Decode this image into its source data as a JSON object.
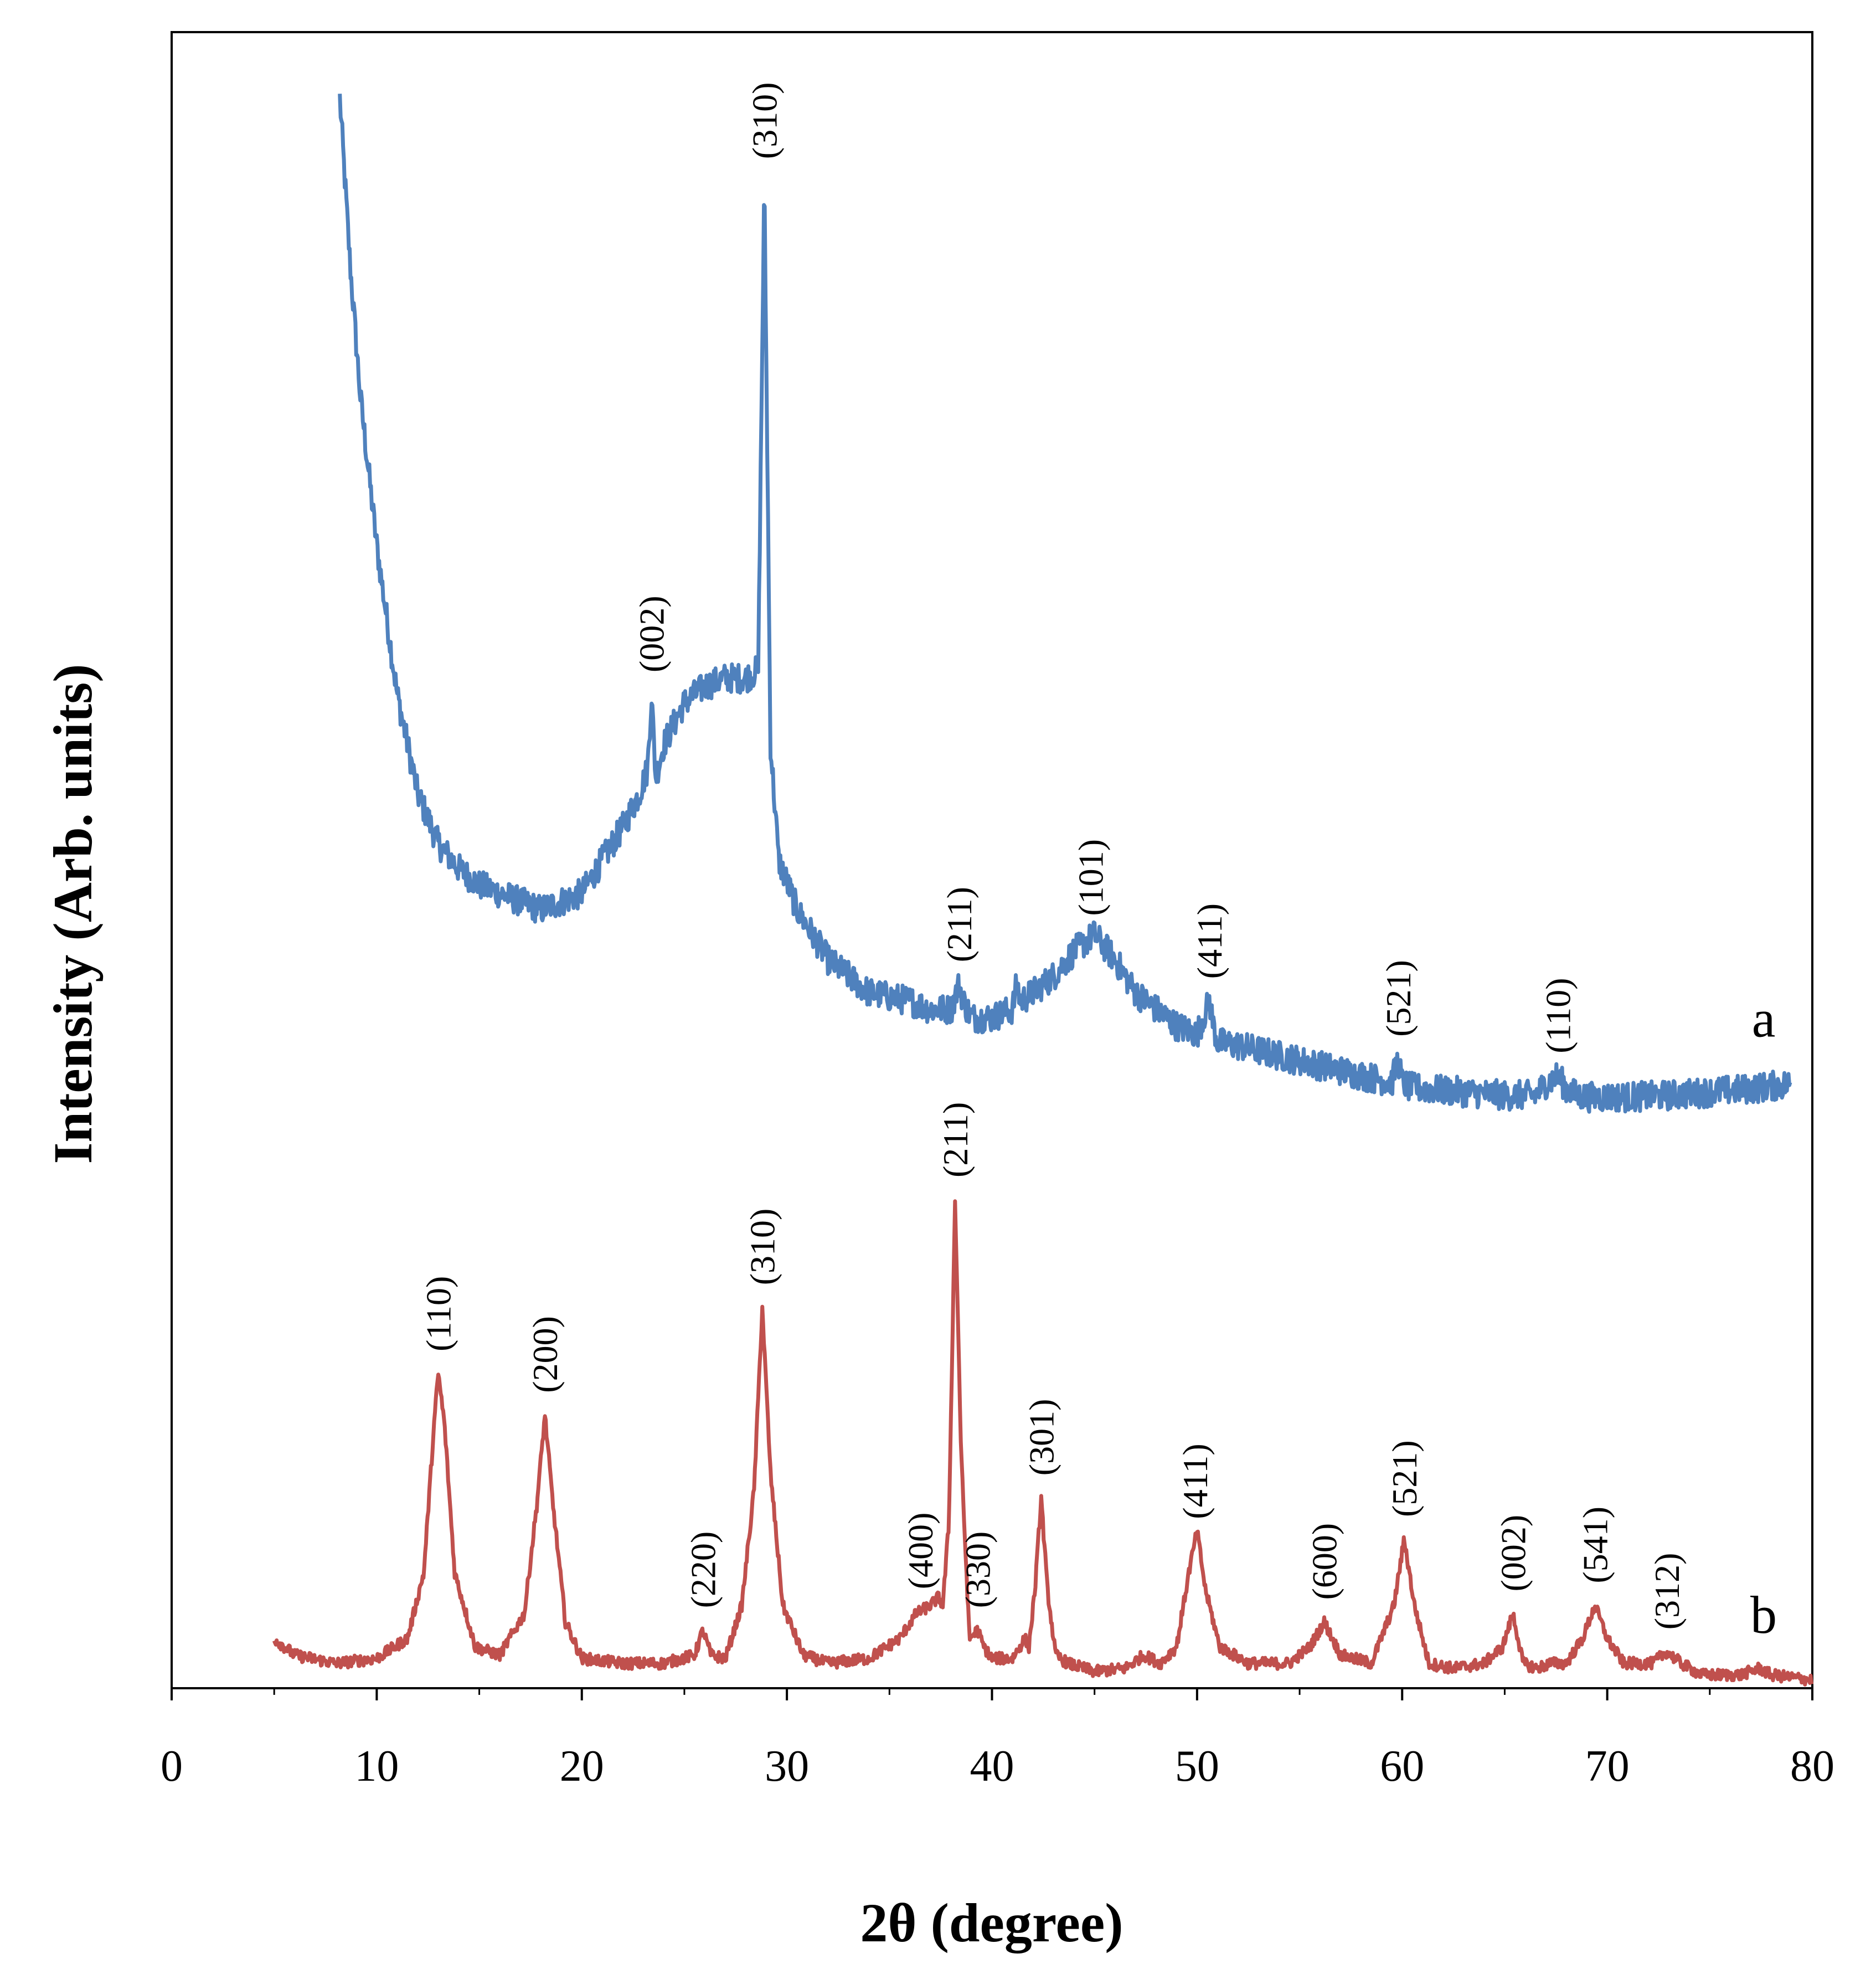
{
  "chart_data": {
    "type": "line",
    "title": "",
    "xlabel": "2θ (degree)",
    "ylabel": "Intensity (Arb. units)",
    "xlim": [
      0,
      80
    ],
    "ylim": [
      0,
      100
    ],
    "xticks": [
      0,
      10,
      20,
      30,
      40,
      50,
      60,
      70,
      80
    ],
    "xtick_labels": [
      "0",
      "10",
      "20",
      "30",
      "40",
      "50",
      "60",
      "70",
      "80"
    ],
    "grid": false,
    "legend": "none",
    "colors": {
      "a": "#4f81bd",
      "b": "#c0504d"
    },
    "series": [
      {
        "name": "a",
        "label": "a",
        "color": "#4f81bd",
        "x": [
          8.2,
          8.7,
          9.2,
          10,
          11,
          12,
          13,
          14,
          15,
          16,
          17,
          18,
          19,
          20,
          21,
          22,
          22.8,
          23.2,
          23.4,
          23.6,
          24,
          25,
          26,
          27,
          28,
          28.6,
          28.9,
          29.2,
          29.6,
          30.5,
          32,
          34,
          36,
          37,
          38,
          38.4,
          38.6,
          39,
          40,
          41,
          41.2,
          41.4,
          42,
          43,
          44,
          45,
          46,
          47,
          48,
          49,
          50,
          50.6,
          50.8,
          51,
          52,
          54,
          56,
          58,
          59.5,
          59.8,
          60,
          60.3,
          61,
          63,
          65,
          66.5,
          67,
          67.6,
          68,
          68.5,
          69,
          71,
          73,
          75,
          77,
          79
        ],
        "y": [
          96,
          86,
          78,
          69,
          60,
          54,
          51,
          49.5,
          48.5,
          48,
          47.5,
          47,
          47.5,
          48,
          50,
          52,
          54,
          55.5,
          60,
          55,
          57,
          59.5,
          60.5,
          61,
          61,
          61.5,
          91,
          57,
          50,
          47,
          44,
          42,
          41.5,
          41,
          41,
          42.5,
          41.5,
          40.5,
          40.5,
          41,
          42.5,
          41.5,
          42,
          43,
          44.5,
          45.5,
          44,
          42,
          41,
          40,
          39.5,
          41.5,
          40,
          39,
          38.8,
          38.2,
          37.6,
          37,
          36.6,
          38,
          36.6,
          36.3,
          36.2,
          36,
          35.8,
          35.8,
          36.5,
          37,
          36.2,
          35.8,
          35.7,
          35.7,
          35.8,
          36,
          36.2,
          36.5
        ]
      },
      {
        "name": "b",
        "label": "b",
        "color": "#c0504d",
        "x": [
          5,
          6,
          8,
          10,
          11.5,
          12.3,
          12.8,
          13,
          13.3,
          13.8,
          14.8,
          16,
          17.2,
          17.8,
          18.2,
          18.6,
          19.2,
          20,
          22,
          24,
          25.5,
          25.9,
          26.3,
          27,
          27.8,
          28.4,
          28.8,
          29.2,
          29.8,
          30.8,
          32,
          34,
          35.5,
          36.3,
          37,
          37.4,
          37.6,
          37.9,
          38.2,
          38.5,
          38.9,
          39.3,
          39.6,
          40,
          41,
          41.6,
          41.8,
          42.1,
          42.4,
          42.7,
          43.1,
          43.7,
          45,
          46.5,
          47.4,
          48.2,
          49,
          49.6,
          50,
          50.4,
          51.1,
          52.5,
          54.5,
          55.5,
          56.2,
          57,
          58.5,
          59.6,
          60.1,
          60.6,
          61.3,
          62.5,
          64,
          64.9,
          65.4,
          65.9,
          66.6,
          67.2,
          68,
          68.8,
          69.4,
          70,
          70.8,
          72.2,
          72.9,
          73.6,
          74.6,
          76.5,
          77.4,
          78,
          80
        ],
        "y": [
          3,
          2,
          1.5,
          1.8,
          3,
          7,
          16,
          19,
          16,
          7,
          2.5,
          2,
          4.5,
          11,
          16.5,
          11,
          4,
          1.8,
          1.5,
          1.5,
          2,
          3.5,
          2,
          1.8,
          5,
          12,
          23,
          13,
          5,
          2,
          1.5,
          1.8,
          3,
          4.5,
          5,
          5.5,
          5,
          10,
          29.5,
          14,
          3,
          3.5,
          2.5,
          1.8,
          1.8,
          3,
          2.5,
          6,
          11.5,
          6,
          2,
          1.5,
          1,
          1.2,
          2,
          1.5,
          2.5,
          7,
          9.5,
          6,
          2.5,
          1.5,
          1.5,
          2.5,
          4,
          2,
          1.5,
          5,
          9,
          5,
          1.5,
          1.2,
          1.5,
          2.5,
          4.5,
          1.5,
          1.2,
          1.5,
          1.5,
          3,
          5,
          3,
          1.5,
          1.5,
          2.2,
          1.5,
          0.8,
          0.8,
          1.2,
          0.8,
          0.5
        ]
      }
    ],
    "annotations": [
      {
        "text": "(002)",
        "series": "a",
        "x": 23.4
      },
      {
        "text": "(310)",
        "series": "a",
        "x": 28.9
      },
      {
        "text": "(211)",
        "series": "a",
        "x": 38.4
      },
      {
        "text": "(101)",
        "series": "a",
        "x": 44.8
      },
      {
        "text": "(411)",
        "series": "a",
        "x": 50.6
      },
      {
        "text": "(521)",
        "series": "a",
        "x": 59.8
      },
      {
        "text": "(110)",
        "series": "a",
        "x": 67.6
      },
      {
        "text": "(110)",
        "series": "b",
        "x": 13.0
      },
      {
        "text": "(200)",
        "series": "b",
        "x": 18.2
      },
      {
        "text": "(220)",
        "series": "b",
        "x": 25.9
      },
      {
        "text": "(310)",
        "series": "b",
        "x": 28.8
      },
      {
        "text": "(400)",
        "series": "b",
        "x": 36.5
      },
      {
        "text": "(211)",
        "series": "b",
        "x": 38.2
      },
      {
        "text": "(330)",
        "series": "b",
        "x": 39.3
      },
      {
        "text": "(301)",
        "series": "b",
        "x": 42.4
      },
      {
        "text": "(411)",
        "series": "b",
        "x": 49.9
      },
      {
        "text": "(600)",
        "series": "b",
        "x": 56.2
      },
      {
        "text": "(521)",
        "series": "b",
        "x": 60.1
      },
      {
        "text": "(002)",
        "series": "b",
        "x": 65.4
      },
      {
        "text": "(541)",
        "series": "b",
        "x": 69.4
      },
      {
        "text": "(312)",
        "series": "b",
        "x": 72.9
      }
    ]
  }
}
